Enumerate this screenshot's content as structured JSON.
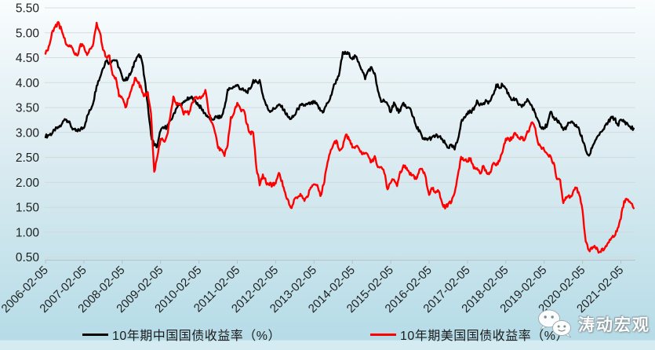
{
  "watermark": {
    "text": "涛动宏观",
    "icon": "wechat-icon"
  },
  "legend": {
    "china_label": "10年期中国国债收益率（%）",
    "us_label": "10年期美国国债收益率（%）"
  },
  "colors": {
    "china_line": "#000000",
    "us_line": "#ff0000",
    "gridline": "#d2d7d9",
    "axis_line": "#b9c0c4",
    "tick_text": "#1f1f1f",
    "background_top": "#f9fdfe",
    "background_bottom": "#b6dce7",
    "footer_strip": "#d4ebf1"
  },
  "chart_data": {
    "type": "line",
    "title": "",
    "xlabel": "",
    "ylabel": "",
    "grid": true,
    "legend_position": "bottom",
    "y_axis": {
      "min": 0.5,
      "max": 5.5,
      "step": 0.5,
      "tick_labels": [
        "0.50",
        "1.00",
        "1.50",
        "2.00",
        "2.50",
        "3.00",
        "3.50",
        "4.00",
        "4.50",
        "5.00",
        "5.50"
      ]
    },
    "x_axis": {
      "start": "2006-02",
      "freq": "monthly",
      "label_rotation": -45,
      "tick_labels": [
        "2006-02-05",
        "2007-02-05",
        "2008-02-05",
        "2009-02-05",
        "2010-02-05",
        "2011-02-05",
        "2012-02-05",
        "2013-02-05",
        "2014-02-05",
        "2015-02-05",
        "2016-02-05",
        "2017-02-05",
        "2018-02-05",
        "2019-02-05",
        "2020-02-05",
        "2021-02-05"
      ]
    },
    "series": [
      {
        "name": "10年期中国国债收益率（%）",
        "color": "#000000",
        "values": [
          2.92,
          2.95,
          2.98,
          3.05,
          3.1,
          3.15,
          3.28,
          3.24,
          3.12,
          3.05,
          3.02,
          3.07,
          3.1,
          3.32,
          3.45,
          3.62,
          3.95,
          4.1,
          4.3,
          4.45,
          4.4,
          4.46,
          4.45,
          4.3,
          4.1,
          4.05,
          4.12,
          4.22,
          4.45,
          4.55,
          4.48,
          4.1,
          3.55,
          2.95,
          2.75,
          2.72,
          3.05,
          3.08,
          3.12,
          3.22,
          3.35,
          3.5,
          3.55,
          3.58,
          3.65,
          3.68,
          3.7,
          3.62,
          3.55,
          3.45,
          3.38,
          3.3,
          3.25,
          3.3,
          3.32,
          3.3,
          3.5,
          3.85,
          3.88,
          3.92,
          3.95,
          3.88,
          3.84,
          3.82,
          3.86,
          4.05,
          4.0,
          4.05,
          3.75,
          3.55,
          3.44,
          3.45,
          3.5,
          3.55,
          3.52,
          3.4,
          3.3,
          3.28,
          3.35,
          3.48,
          3.54,
          3.55,
          3.56,
          3.58,
          3.6,
          3.55,
          3.44,
          3.42,
          3.58,
          3.66,
          3.9,
          4.05,
          4.2,
          4.6,
          4.58,
          4.58,
          4.48,
          4.52,
          4.42,
          4.25,
          4.08,
          4.25,
          4.3,
          4.18,
          3.82,
          3.62,
          3.65,
          3.55,
          3.42,
          3.6,
          3.45,
          3.42,
          3.6,
          3.48,
          3.5,
          3.32,
          3.1,
          3.05,
          2.86,
          2.86,
          2.88,
          2.9,
          2.93,
          2.92,
          2.86,
          2.78,
          2.7,
          2.74,
          2.66,
          2.86,
          3.2,
          3.3,
          3.38,
          3.42,
          3.46,
          3.65,
          3.56,
          3.58,
          3.62,
          3.62,
          3.74,
          3.95,
          3.9,
          3.96,
          3.88,
          3.75,
          3.66,
          3.66,
          3.56,
          3.5,
          3.6,
          3.65,
          3.55,
          3.4,
          3.26,
          3.12,
          3.1,
          3.15,
          3.4,
          3.3,
          3.25,
          3.18,
          3.05,
          3.12,
          3.2,
          3.18,
          3.15,
          3.05,
          2.85,
          2.65,
          2.52,
          2.7,
          2.85,
          2.95,
          3.0,
          3.12,
          3.2,
          3.3,
          3.28,
          3.15,
          3.25,
          3.22,
          3.18,
          3.1,
          3.08
        ]
      },
      {
        "name": "10年期美国国债收益率（%）",
        "color": "#ff0000",
        "values": [
          4.57,
          4.72,
          4.99,
          5.1,
          5.2,
          5.05,
          4.88,
          4.72,
          4.73,
          4.6,
          4.56,
          4.76,
          4.72,
          4.56,
          4.69,
          4.8,
          5.2,
          5.0,
          4.67,
          4.52,
          4.53,
          4.15,
          4.1,
          3.74,
          3.7,
          3.51,
          3.68,
          3.88,
          4.1,
          4.0,
          3.89,
          3.72,
          3.8,
          3.4,
          2.2,
          2.5,
          2.87,
          2.82,
          2.93,
          3.3,
          3.72,
          3.56,
          3.58,
          3.4,
          3.39,
          3.4,
          3.59,
          3.72,
          3.69,
          3.73,
          3.85,
          3.42,
          3.2,
          3.0,
          2.7,
          2.65,
          2.54,
          2.76,
          3.3,
          3.4,
          3.58,
          3.45,
          3.45,
          3.17,
          3.0,
          2.98,
          2.3,
          1.95,
          2.15,
          2.0,
          1.96,
          1.95,
          1.98,
          2.2,
          2.02,
          1.78,
          1.62,
          1.5,
          1.68,
          1.72,
          1.74,
          1.64,
          1.72,
          1.9,
          1.98,
          1.95,
          1.73,
          1.95,
          2.3,
          2.58,
          2.75,
          2.85,
          2.62,
          2.72,
          2.95,
          2.85,
          2.7,
          2.72,
          2.7,
          2.55,
          2.6,
          2.52,
          2.4,
          2.52,
          2.3,
          2.32,
          2.2,
          1.85,
          2.0,
          2.04,
          1.93,
          2.2,
          2.36,
          2.3,
          2.16,
          2.16,
          2.06,
          2.26,
          2.24,
          2.08,
          1.76,
          1.88,
          1.8,
          1.82,
          1.62,
          1.48,
          1.56,
          1.62,
          1.78,
          2.15,
          2.5,
          2.43,
          2.42,
          2.48,
          2.28,
          2.28,
          2.18,
          2.32,
          2.2,
          2.2,
          2.36,
          2.35,
          2.42,
          2.6,
          2.88,
          2.84,
          2.9,
          3.0,
          2.9,
          2.88,
          2.88,
          3.02,
          3.18,
          3.12,
          2.82,
          2.7,
          2.66,
          2.55,
          2.52,
          2.38,
          2.05,
          2.05,
          1.6,
          1.7,
          1.7,
          1.8,
          1.88,
          1.76,
          1.45,
          0.8,
          0.64,
          0.66,
          0.7,
          0.6,
          0.65,
          0.68,
          0.8,
          0.88,
          0.93,
          1.08,
          1.28,
          1.62,
          1.64,
          1.6,
          1.48
        ]
      }
    ]
  }
}
